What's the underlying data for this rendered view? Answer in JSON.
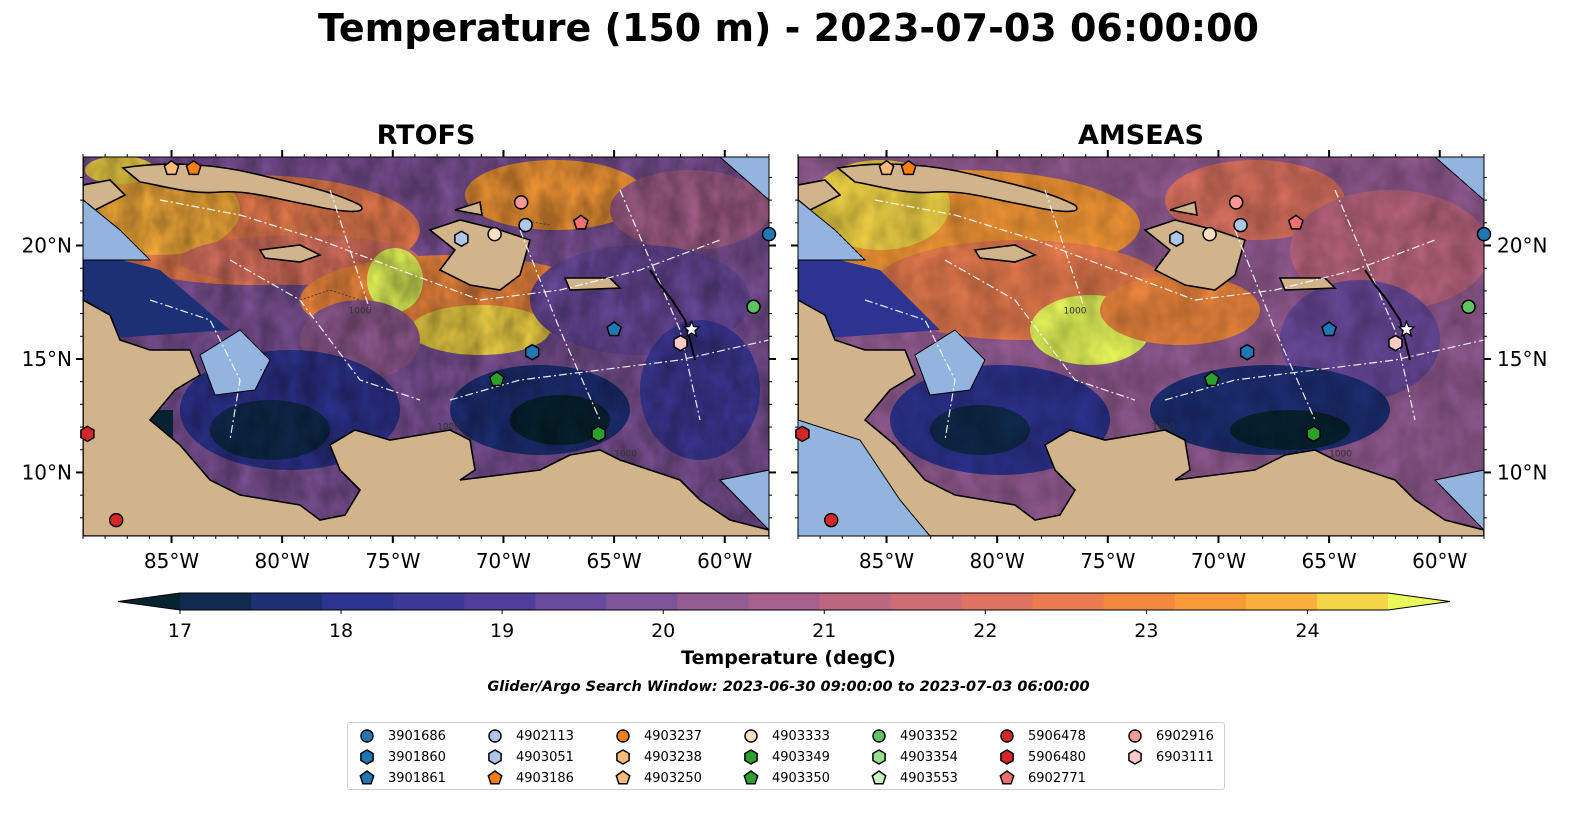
{
  "figure": {
    "title": "Temperature (150 m) - 2023-07-03 06:00:00",
    "search_window": "Glider/Argo Search Window: 2023-06-30 09:00:00 to 2023-07-03 06:00:00"
  },
  "panels": [
    {
      "title": "RTOFS"
    },
    {
      "title": "AMSEAS"
    }
  ],
  "axes": {
    "x_tick_labels": [
      "85°W",
      "80°W",
      "75°W",
      "70°W",
      "65°W",
      "60°W"
    ],
    "y_tick_labels": [
      "20°N",
      "15°N",
      "10°N"
    ]
  },
  "colorbar": {
    "label": "Temperature (degC)",
    "tick_labels": [
      "17",
      "18",
      "19",
      "20",
      "21",
      "22",
      "23",
      "24"
    ],
    "range": [
      17,
      24.5
    ],
    "step": 0.5,
    "extend": "both",
    "colors": [
      "#072331",
      "#0f2a4d",
      "#1d2f75",
      "#2d3390",
      "#3d3896",
      "#513d9a",
      "#6a4a9c",
      "#7e5398",
      "#935c92",
      "#a6618c",
      "#bc6680",
      "#cd6c74",
      "#dd7360",
      "#ea7d4f",
      "#f2893f",
      "#f89a37",
      "#fbb03c",
      "#f3d547",
      "#e8fa5b"
    ]
  },
  "map_colors": {
    "land": "#d2b48c",
    "shallow_water": "#94b4e0",
    "borders": "#000000"
  },
  "legend": {
    "items": [
      {
        "label": "3901686",
        "shape": "circle",
        "color": "#1f77b4"
      },
      {
        "label": "3901860",
        "shape": "hexagon",
        "color": "#1f77b4"
      },
      {
        "label": "3901861",
        "shape": "pentagon",
        "color": "#1f77b4"
      },
      {
        "label": "4902113",
        "shape": "circle",
        "color": "#aec7e8"
      },
      {
        "label": "4903051",
        "shape": "hexagon",
        "color": "#aec7e8"
      },
      {
        "label": "4903186",
        "shape": "pentagon",
        "color": "#ff7f0e"
      },
      {
        "label": "4903237",
        "shape": "circle",
        "color": "#ff7f0e"
      },
      {
        "label": "4903238",
        "shape": "hexagon",
        "color": "#ffbb78"
      },
      {
        "label": "4903250",
        "shape": "pentagon",
        "color": "#ffbb78"
      },
      {
        "label": "4903333",
        "shape": "circle",
        "color": "#ffdfc0"
      },
      {
        "label": "4903349",
        "shape": "hexagon",
        "color": "#2ca02c"
      },
      {
        "label": "4903350",
        "shape": "pentagon",
        "color": "#2ca02c"
      },
      {
        "label": "4903352",
        "shape": "circle",
        "color": "#5fc35f"
      },
      {
        "label": "4903354",
        "shape": "hexagon",
        "color": "#98df8a"
      },
      {
        "label": "4903553",
        "shape": "pentagon",
        "color": "#c9f2c0"
      },
      {
        "label": "5906478",
        "shape": "circle",
        "color": "#d62728"
      },
      {
        "label": "5906480",
        "shape": "hexagon",
        "color": "#d62728"
      },
      {
        "label": "6902771",
        "shape": "pentagon",
        "color": "#f07070"
      },
      {
        "label": "6902916",
        "shape": "circle",
        "color": "#ff9896"
      },
      {
        "label": "6903111",
        "shape": "hexagon",
        "color": "#ffc9c6"
      }
    ]
  },
  "markers": [
    {
      "id": "3901686",
      "lon": -58.0,
      "lat": 20.5
    },
    {
      "id": "3901860",
      "lon": -68.7,
      "lat": 15.3
    },
    {
      "id": "3901861",
      "lon": -65.0,
      "lat": 16.3
    },
    {
      "id": "4902113",
      "lon": -69.0,
      "lat": 20.9
    },
    {
      "id": "4903051",
      "lon": -71.9,
      "lat": 20.3
    },
    {
      "id": "4903186",
      "lon": -84.0,
      "lat": 23.4
    },
    {
      "id": "4903250",
      "lon": -85.0,
      "lat": 23.4
    },
    {
      "id": "4903333",
      "lon": -70.4,
      "lat": 20.5
    },
    {
      "id": "4903350",
      "lon": -70.3,
      "lat": 14.1
    },
    {
      "id": "4903352",
      "lon": -58.7,
      "lat": 17.3
    },
    {
      "id": "4903349",
      "lon": -65.7,
      "lat": 11.7
    },
    {
      "id": "5906478",
      "lon": -87.5,
      "lat": 7.9
    },
    {
      "id": "5906480",
      "lon": -88.8,
      "lat": 11.7
    },
    {
      "id": "6902771",
      "lon": -66.5,
      "lat": 21.0
    },
    {
      "id": "6902916",
      "lon": -69.2,
      "lat": 21.9
    },
    {
      "id": "6903111",
      "lon": -62.0,
      "lat": 15.7
    }
  ],
  "contour_label": "1000",
  "star_marker": {
    "lon": -61.5,
    "lat": 16.3
  }
}
